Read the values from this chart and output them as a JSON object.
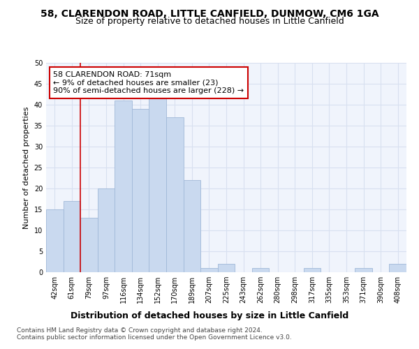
{
  "title1": "58, CLARENDON ROAD, LITTLE CANFIELD, DUNMOW, CM6 1GA",
  "title2": "Size of property relative to detached houses in Little Canfield",
  "xlabel": "Distribution of detached houses by size in Little Canfield",
  "ylabel": "Number of detached properties",
  "categories": [
    "42sqm",
    "61sqm",
    "79sqm",
    "97sqm",
    "116sqm",
    "134sqm",
    "152sqm",
    "170sqm",
    "189sqm",
    "207sqm",
    "225sqm",
    "243sqm",
    "262sqm",
    "280sqm",
    "298sqm",
    "317sqm",
    "335sqm",
    "353sqm",
    "371sqm",
    "390sqm",
    "408sqm"
  ],
  "values": [
    15,
    17,
    13,
    20,
    41,
    39,
    42,
    37,
    22,
    1,
    2,
    0,
    1,
    0,
    0,
    1,
    0,
    0,
    1,
    0,
    2
  ],
  "bar_color": "#c9d9ef",
  "bar_edge_color": "#a0b8d8",
  "vline_x": 1.5,
  "vline_color": "#cc0000",
  "annotation_title": "58 CLARENDON ROAD: 71sqm",
  "annotation_line1": "← 9% of detached houses are smaller (23)",
  "annotation_line2": "90% of semi-detached houses are larger (228) →",
  "annotation_box_facecolor": "#ffffff",
  "annotation_box_edgecolor": "#cc0000",
  "ylim": [
    0,
    50
  ],
  "yticks": [
    0,
    5,
    10,
    15,
    20,
    25,
    30,
    35,
    40,
    45,
    50
  ],
  "footer1": "Contains HM Land Registry data © Crown copyright and database right 2024.",
  "footer2": "Contains public sector information licensed under the Open Government Licence v3.0.",
  "bg_color": "#ffffff",
  "plot_bg_color": "#f0f4fc",
  "grid_color": "#d8e0f0",
  "title1_fontsize": 10,
  "title2_fontsize": 9,
  "xlabel_fontsize": 9,
  "ylabel_fontsize": 8,
  "tick_fontsize": 7,
  "annotation_fontsize": 8,
  "footer_fontsize": 6.5
}
